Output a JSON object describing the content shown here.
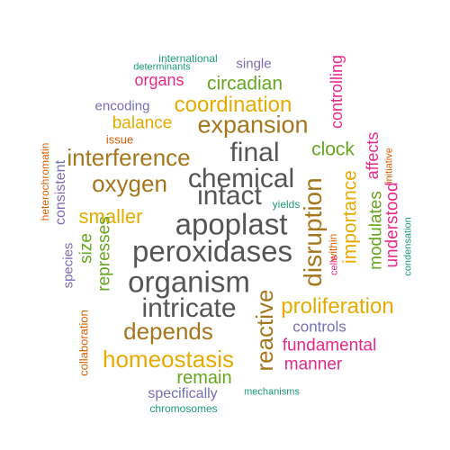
{
  "palette": {
    "teal": "#1b9e77",
    "orange": "#d95f02",
    "purple": "#7570b3",
    "magenta": "#e7298a",
    "green": "#66a61e",
    "gold": "#e6ab02",
    "brown": "#a6761d",
    "gray": "#555555"
  },
  "words": [
    {
      "text": "international",
      "color": "teal"
    },
    {
      "text": "determinants",
      "color": "teal"
    },
    {
      "text": "single",
      "color": "purple"
    },
    {
      "text": "organs",
      "color": "magenta"
    },
    {
      "text": "circadian",
      "color": "green"
    },
    {
      "text": "controlling",
      "color": "magenta"
    },
    {
      "text": "encoding",
      "color": "purple"
    },
    {
      "text": "coordination",
      "color": "gold"
    },
    {
      "text": "balance",
      "color": "gold"
    },
    {
      "text": "expansion",
      "color": "brown"
    },
    {
      "text": "issue",
      "color": "orange"
    },
    {
      "text": "final",
      "color": "gray"
    },
    {
      "text": "clock",
      "color": "green"
    },
    {
      "text": "affects",
      "color": "magenta"
    },
    {
      "text": "initiative",
      "color": "orange"
    },
    {
      "text": "interference",
      "color": "brown"
    },
    {
      "text": "heterochromatin",
      "color": "orange"
    },
    {
      "text": "consistent",
      "color": "purple"
    },
    {
      "text": "chemical",
      "color": "gray"
    },
    {
      "text": "oxygen",
      "color": "brown"
    },
    {
      "text": "intact",
      "color": "gray"
    },
    {
      "text": "yields",
      "color": "teal"
    },
    {
      "text": "importance",
      "color": "gold"
    },
    {
      "text": "modulates",
      "color": "green"
    },
    {
      "text": "understood",
      "color": "magenta"
    },
    {
      "text": "disruption",
      "color": "brown"
    },
    {
      "text": "smaller",
      "color": "gold"
    },
    {
      "text": "apoplast",
      "color": "gray"
    },
    {
      "text": "condensation",
      "color": "teal"
    },
    {
      "text": "within",
      "color": "orange"
    },
    {
      "text": "species",
      "color": "purple"
    },
    {
      "text": "size",
      "color": "green"
    },
    {
      "text": "represses",
      "color": "green"
    },
    {
      "text": "peroxidases",
      "color": "gray"
    },
    {
      "text": "cells",
      "color": "magenta"
    },
    {
      "text": "organism",
      "color": "gray"
    },
    {
      "text": "reactive",
      "color": "brown"
    },
    {
      "text": "proliferation",
      "color": "gold"
    },
    {
      "text": "intricate",
      "color": "gray"
    },
    {
      "text": "collaboration",
      "color": "orange"
    },
    {
      "text": "depends",
      "color": "brown"
    },
    {
      "text": "controls",
      "color": "purple"
    },
    {
      "text": "fundamental",
      "color": "magenta"
    },
    {
      "text": "homeostasis",
      "color": "gold"
    },
    {
      "text": "manner",
      "color": "magenta"
    },
    {
      "text": "remain",
      "color": "green"
    },
    {
      "text": "specifically",
      "color": "purple"
    },
    {
      "text": "mechanisms",
      "color": "teal"
    },
    {
      "text": "chromosomes",
      "color": "teal"
    }
  ]
}
